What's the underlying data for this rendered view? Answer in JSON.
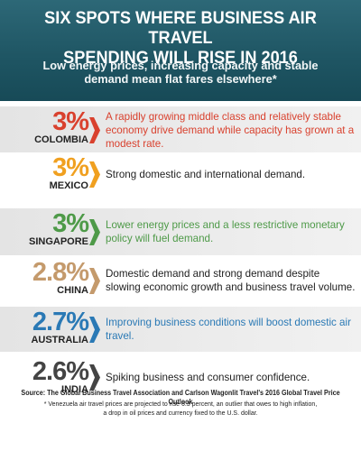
{
  "header": {
    "title_line1": "SIX SPOTS WHERE BUSINESS AIR TRAVEL",
    "title_line2": "SPENDING WILL RISE IN 2016",
    "subtitle_line1": "Low energy prices, increasing capacity and stable",
    "subtitle_line2": "demand mean flat fares elsewhere*",
    "bg_color": "#1f5664"
  },
  "rows": [
    {
      "percent": "3%",
      "country": "COLOMBIA",
      "description": "A rapidly growing middle class and relatively stable economy drive demand while capacity has grown at a modest rate.",
      "color": "#d9412e",
      "desc_color": "#d9412e",
      "shaded": true
    },
    {
      "percent": "3%",
      "country": "MEXICO",
      "description": "Strong domestic and international demand.",
      "color": "#f0a020",
      "desc_color": "#222222",
      "shaded": false
    },
    {
      "percent": "3%",
      "country": "SINGAPORE",
      "description": "Lower energy prices and a less restrictive monetary policy will fuel demand.",
      "color": "#4e9a48",
      "desc_color": "#4e9a48",
      "shaded": true
    },
    {
      "percent": "2.8%",
      "country": "CHINA",
      "description": "Domestic demand and strong demand despite slowing economic growth and business travel volume.",
      "color": "#c49a6c",
      "desc_color": "#222222",
      "shaded": false
    },
    {
      "percent": "2.7%",
      "country": "AUSTRALIA",
      "description": "Improving business conditions will boost domestic air travel.",
      "color": "#2a79b5",
      "desc_color": "#2a79b5",
      "shaded": true
    },
    {
      "percent": "2.6%",
      "country": "INDIA",
      "description": "Spiking business and consumer confidence.",
      "color": "#444444",
      "desc_color": "#222222",
      "shaded": false
    }
  ],
  "footer": {
    "source": "Source: The Global Business Travel Association and Carlson Wagonlit Travel's 2016 Global Travel Price Outlook",
    "footnote_line1": "* Venezuela air travel prices are projected to rise 6.3 percent, an outlier that owes to high inflation,",
    "footnote_line2": "a drop in oil prices and currency fixed to the U.S. dollar."
  }
}
